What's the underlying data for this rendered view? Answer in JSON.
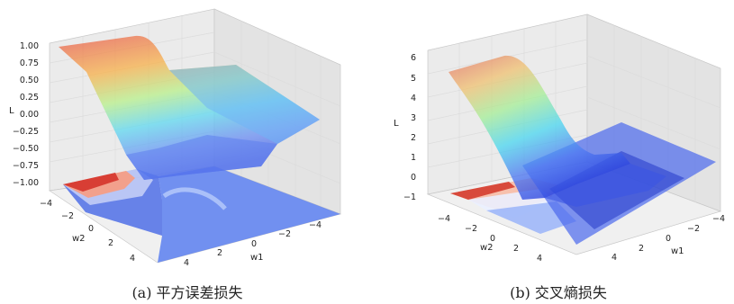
{
  "chart_data": [
    {
      "type": "surface3d",
      "caption": "(a) 平方误差损失",
      "zlabel": "L",
      "xlabel": "w1",
      "ylabel": "w2",
      "zticks": [
        "1.00",
        "0.75",
        "0.50",
        "0.25",
        "0.00",
        "−0.25",
        "−0.50",
        "−0.75",
        "−1.00"
      ],
      "xticks": [
        "−4",
        "−2",
        "0",
        "2",
        "4"
      ],
      "yticks": [
        "−4",
        "−2",
        "0",
        "2",
        "4"
      ],
      "zlim": [
        -1,
        1
      ]
    },
    {
      "type": "surface3d",
      "caption": "(b) 交叉熵损失",
      "zlabel": "L",
      "xlabel": "w1",
      "ylabel": "w2",
      "zticks": [
        "6",
        "5",
        "4",
        "3",
        "2",
        "1",
        "0",
        "−1"
      ],
      "xticks": [
        "−4",
        "−2",
        "0",
        "2",
        "4"
      ],
      "yticks": [
        "−4",
        "−2",
        "0",
        "2",
        "4"
      ],
      "zlim": [
        -1,
        6
      ]
    }
  ]
}
